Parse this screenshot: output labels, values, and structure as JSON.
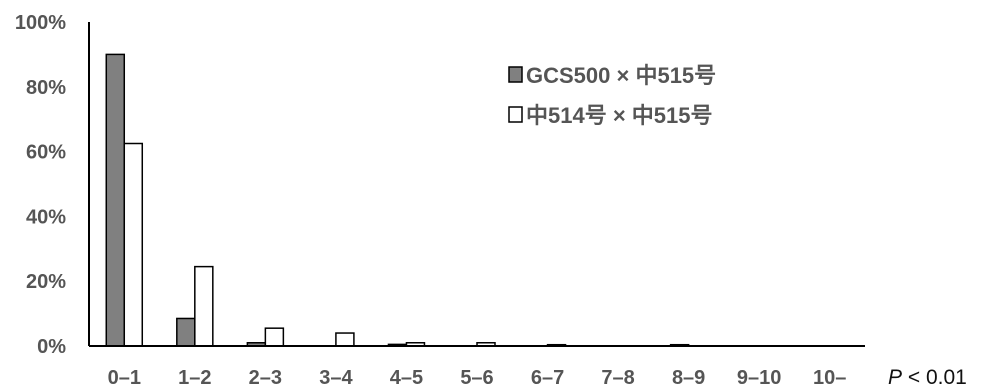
{
  "chart_data": {
    "type": "bar",
    "categories": [
      "0–1",
      "1–2",
      "2–3",
      "3–4",
      "4–5",
      "5–6",
      "6–7",
      "7–8",
      "8–9",
      "9–10",
      "10–"
    ],
    "series": [
      {
        "name": "GCS500 × 中515号",
        "color": "#808080",
        "values": [
          90.0,
          8.5,
          1.0,
          0.0,
          0.5,
          0.0,
          0.0,
          0.0,
          0.4,
          0.0,
          0.0
        ]
      },
      {
        "name": "中514号 × 中515号",
        "color": "#ffffff",
        "values": [
          62.5,
          24.5,
          5.5,
          4.0,
          1.0,
          1.0,
          0.4,
          0.0,
          0.0,
          0.0,
          0.0
        ]
      }
    ],
    "ylim": [
      0,
      100
    ],
    "yticks": [
      "0%",
      "20%",
      "40%",
      "60%",
      "80%",
      "100%"
    ],
    "xlabel": "",
    "ylabel": "",
    "legend_position": "top-right",
    "grid": false,
    "annotation": {
      "italic": "P",
      "rest": " < 0.01"
    }
  }
}
